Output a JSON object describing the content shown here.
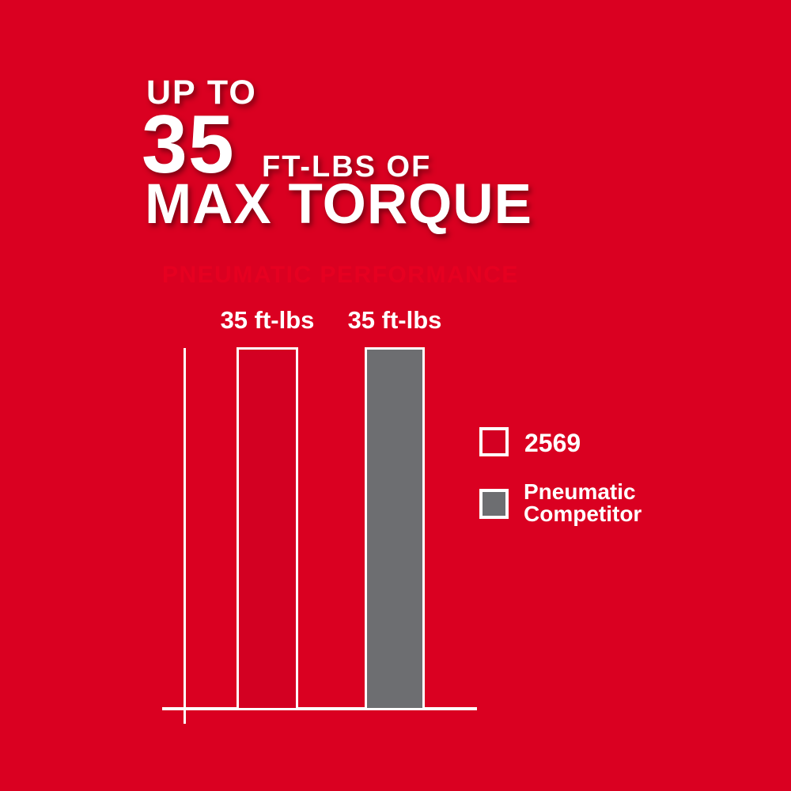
{
  "header": {
    "up_to": "UP TO",
    "big_number": "35",
    "ft_lbs_of": "FT-LBS OF",
    "max_torque": "MAX TORQUE"
  },
  "colors": {
    "background_red": "#da0021",
    "panel_black": "#000000",
    "panel_fade_red": "#d40020",
    "bar_red": "#d30022",
    "competitor_gray": "#6d6e71",
    "title_red": "#e60021",
    "axis_white": "#ffffff",
    "text_white": "#ffffff"
  },
  "chart_data": {
    "type": "bar",
    "title": "PNEUMATIC PERFORMANCE",
    "categories": [
      "2569",
      "Pneumatic Competitor"
    ],
    "values": [
      35,
      35
    ],
    "unit": "ft-lbs",
    "bar_labels": [
      "35 ft-lbs",
      "35 ft-lbs"
    ],
    "series_colors": [
      "#d30022",
      "#6d6e71"
    ],
    "xlabel": "",
    "ylabel": "",
    "ylim": [
      0,
      35
    ],
    "grid": false,
    "axis_color": "#ffffff",
    "legend_position": "right-middle",
    "legend": [
      {
        "label": "2569",
        "color": "#d30022"
      },
      {
        "label": "Pneumatic Competitor",
        "color": "#6d6e71"
      }
    ]
  }
}
